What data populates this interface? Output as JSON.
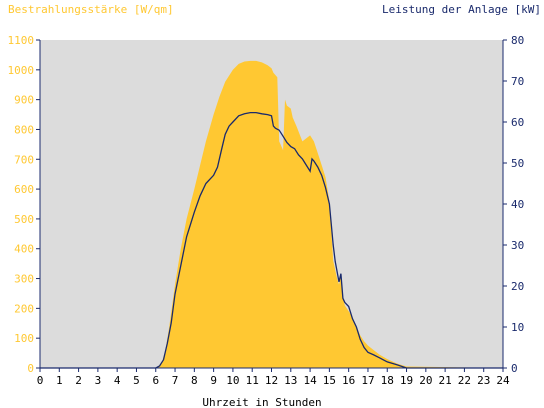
{
  "chart_data": {
    "type": "area",
    "ylabel_left": "Bestrahlungsstärke [W/qm]",
    "ylabel_right": "Leistung der Anlage [kW]",
    "xlabel": "Uhrzeit in Stunden",
    "xlim": [
      0,
      24
    ],
    "ylim_left": [
      0,
      1100
    ],
    "ylim_right": [
      0,
      80
    ],
    "x_ticks": [
      "0",
      "1",
      "2",
      "3",
      "4",
      "5",
      "6",
      "7",
      "8",
      "9",
      "10",
      "11",
      "12",
      "13",
      "14",
      "15",
      "16",
      "17",
      "18",
      "19",
      "20",
      "21",
      "22",
      "23",
      "24"
    ],
    "y_ticks_left": [
      "0",
      "100",
      "200",
      "300",
      "400",
      "500",
      "600",
      "700",
      "800",
      "900",
      "1000",
      "1100"
    ],
    "y_ticks_right": [
      "0",
      "10",
      "20",
      "30",
      "40",
      "50",
      "60",
      "70",
      "80"
    ],
    "grid": false,
    "colors": {
      "plot_bg": "#dcdcdc",
      "irradiance": "#ffc832",
      "power": "#1a2a6c",
      "left_axis_text": "#ffc832",
      "right_axis_text": "#1a2a6c"
    },
    "series": [
      {
        "name": "Bestrahlungsstärke [W/qm]",
        "axis": "left",
        "x": [
          0,
          6.0,
          6.3,
          6.5,
          6.7,
          7.0,
          7.3,
          7.6,
          8.0,
          8.3,
          8.6,
          9.0,
          9.3,
          9.6,
          10.0,
          10.3,
          10.6,
          10.9,
          11.2,
          11.5,
          11.8,
          12.0,
          12.1,
          12.3,
          12.4,
          12.6,
          12.7,
          12.8,
          13.0,
          13.1,
          13.3,
          13.6,
          13.8,
          14.0,
          14.2,
          14.4,
          14.6,
          14.8,
          15.0,
          15.2,
          15.4,
          15.5,
          15.6,
          15.7,
          15.8,
          16.0,
          16.2,
          16.4,
          16.6,
          16.8,
          17.0,
          17.3,
          17.6,
          18.0,
          18.5,
          19.0,
          24
        ],
        "y": [
          0,
          0,
          15,
          60,
          140,
          280,
          400,
          500,
          600,
          680,
          760,
          850,
          910,
          960,
          1000,
          1020,
          1028,
          1030,
          1030,
          1025,
          1015,
          1005,
          990,
          975,
          760,
          730,
          900,
          880,
          870,
          840,
          810,
          760,
          770,
          780,
          760,
          720,
          680,
          640,
          560,
          360,
          300,
          280,
          310,
          240,
          210,
          190,
          170,
          140,
          110,
          90,
          75,
          60,
          45,
          30,
          15,
          5,
          0
        ]
      },
      {
        "name": "Leistung der Anlage [kW]",
        "axis": "right",
        "x": [
          0,
          6.0,
          6.2,
          6.4,
          6.6,
          6.8,
          7.0,
          7.3,
          7.6,
          8.0,
          8.3,
          8.6,
          9.0,
          9.2,
          9.4,
          9.6,
          9.8,
          10.0,
          10.3,
          10.6,
          10.9,
          11.2,
          11.5,
          11.8,
          12.0,
          12.1,
          12.2,
          12.4,
          12.6,
          12.8,
          13.0,
          13.2,
          13.4,
          13.6,
          13.8,
          14.0,
          14.1,
          14.2,
          14.4,
          14.6,
          14.8,
          15.0,
          15.2,
          15.3,
          15.5,
          15.6,
          15.7,
          15.8,
          16.0,
          16.2,
          16.4,
          16.6,
          16.8,
          17.0,
          17.3,
          17.6,
          18.0,
          18.5,
          19.0,
          24
        ],
        "y": [
          0,
          0,
          0.5,
          2,
          6,
          11,
          18,
          25,
          32,
          38,
          42,
          45,
          47,
          49,
          53,
          57,
          59,
          60,
          61.5,
          62,
          62.3,
          62.3,
          62,
          61.8,
          61.5,
          59,
          58.5,
          58,
          56.5,
          55,
          54,
          53.5,
          52,
          51,
          49.5,
          48,
          51,
          50.5,
          49,
          47,
          44,
          40,
          30,
          26,
          21,
          23,
          17,
          16,
          15,
          12,
          10,
          7,
          5,
          3.8,
          3.2,
          2.5,
          1.5,
          0.8,
          0,
          0
        ]
      }
    ]
  }
}
